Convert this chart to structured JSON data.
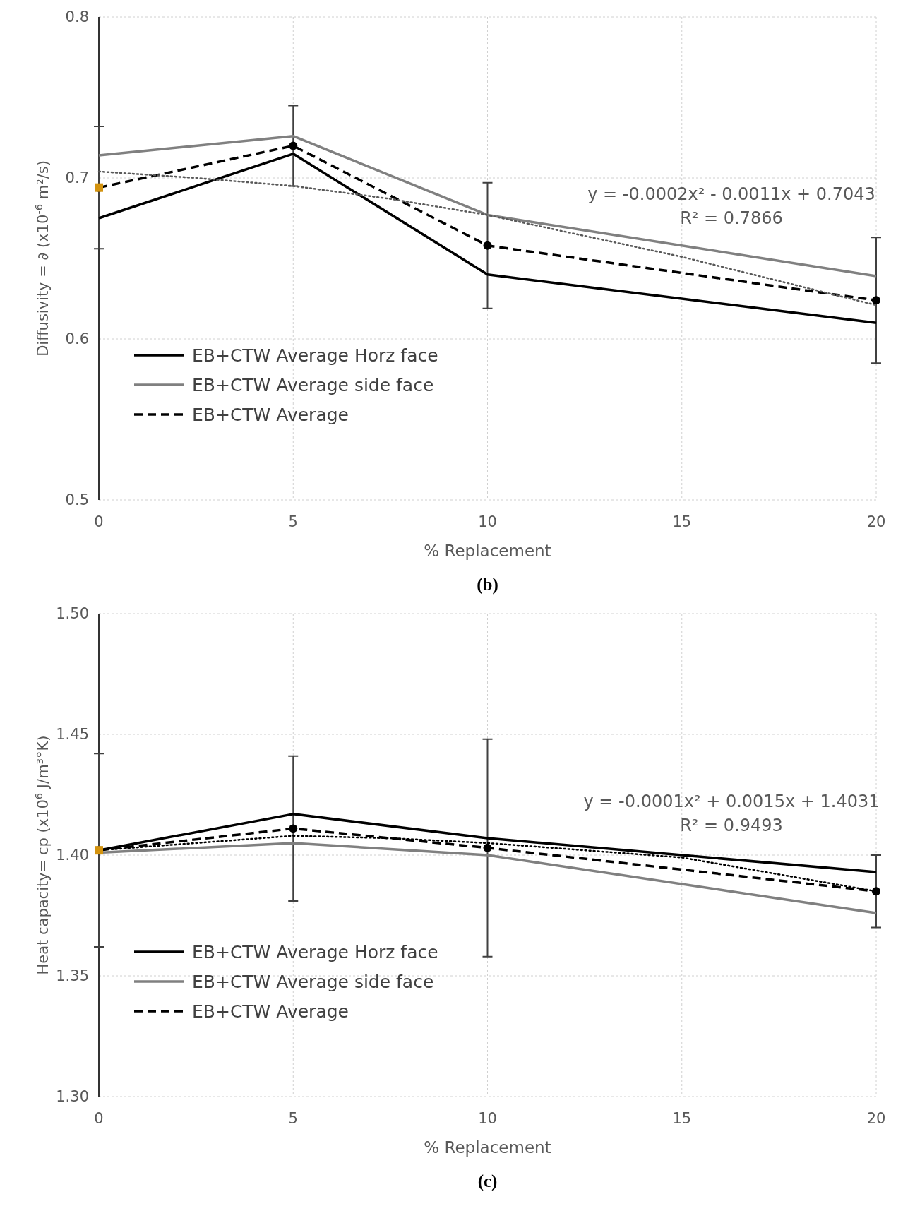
{
  "chart_data": [
    {
      "type": "line",
      "title": "(b)",
      "xlabel": "% Replacement",
      "ylabel": "Diffusivity = ∂ (x10$^{-6}$ m²/s)",
      "xlim": [
        0,
        20
      ],
      "xticks": [
        0,
        5,
        10,
        15,
        20
      ],
      "ylim": [
        0.5,
        0.8
      ],
      "yticks": [
        0.5,
        0.6,
        0.7,
        0.8
      ],
      "grid": true,
      "legend": "bottom left",
      "x": [
        0,
        5,
        10,
        20
      ],
      "series": [
        {
          "name": "EB+CTW Average Horz face",
          "color": "#000000",
          "line_style": "solid",
          "values": [
            0.675,
            0.715,
            0.64,
            0.61
          ]
        },
        {
          "name": "EB+CTW Average side face",
          "color": "#808080",
          "line_style": "solid",
          "values": [
            0.714,
            0.726,
            0.677,
            0.639
          ]
        },
        {
          "name": "EB+CTW Average",
          "color": "#000000",
          "line_style": "dashed",
          "marker": "circle",
          "values": [
            0.694,
            0.72,
            0.658,
            0.624
          ],
          "errors": [
            0.038,
            0.025,
            0.039,
            0.039
          ]
        },
        {
          "type": "line",
          "color": "#595959",
          "line_style": "dotted",
          "x": [
            0,
            2.5,
            5,
            7.5,
            10,
            15,
            20
          ],
          "values": [
            0.704,
            0.7,
            0.695,
            0.687,
            0.677,
            0.651,
            0.621
          ]
        },
        {
          "type": "scatter",
          "color": "#d4930e",
          "marker": "square",
          "x": [
            0
          ],
          "values": [
            0.694
          ]
        }
      ],
      "annotations": [
        "y = -0.0002x² - 0.0011x + 0.7043",
        "R² = 0.7866"
      ]
    },
    {
      "type": "line",
      "title": "(c)",
      "xlabel": "% Replacement",
      "ylabel": "Heat capacity= cp (x10$^{6}$ J/m³°K)",
      "xlim": [
        0,
        20
      ],
      "xticks": [
        0,
        5,
        10,
        15,
        20
      ],
      "ylim": [
        1.3,
        1.5
      ],
      "yticks": [
        {
          "value": 1.3,
          "label": "1.30"
        },
        {
          "value": 1.35,
          "label": "1.35"
        },
        {
          "value": 1.4,
          "label": "1.40"
        },
        {
          "value": 1.45,
          "label": "1.45"
        },
        {
          "value": 1.5,
          "label": "1.50"
        }
      ],
      "grid": true,
      "legend": "bottom left",
      "x": [
        0,
        5,
        10,
        20
      ],
      "series": [
        {
          "name": "EB+CTW Average Horz face",
          "color": "#000000",
          "line_style": "solid",
          "values": [
            1.402,
            1.417,
            1.407,
            1.393
          ]
        },
        {
          "name": "EB+CTW Average side face",
          "color": "#808080",
          "line_style": "solid",
          "values": [
            1.401,
            1.405,
            1.4,
            1.376
          ]
        },
        {
          "name": "EB+CTW Average",
          "color": "#000000",
          "line_style": "dashed",
          "marker": "circle",
          "values": [
            1.402,
            1.411,
            1.403,
            1.385
          ],
          "errors": [
            0.04,
            0.03,
            0.045,
            0.015
          ]
        },
        {
          "type": "line",
          "color": "#000000",
          "line_style": "dotted",
          "x": [
            0,
            2.5,
            5,
            7.5,
            10,
            15,
            20
          ],
          "values": [
            1.402,
            1.405,
            1.408,
            1.407,
            1.405,
            1.399,
            1.385
          ]
        },
        {
          "type": "scatter",
          "color": "#d4930e",
          "marker": "square",
          "x": [
            0
          ],
          "values": [
            1.402
          ]
        }
      ],
      "annotations": [
        "y = -0.0001x² + 0.0015x + 1.4031",
        "R² = 0.9493"
      ]
    }
  ]
}
